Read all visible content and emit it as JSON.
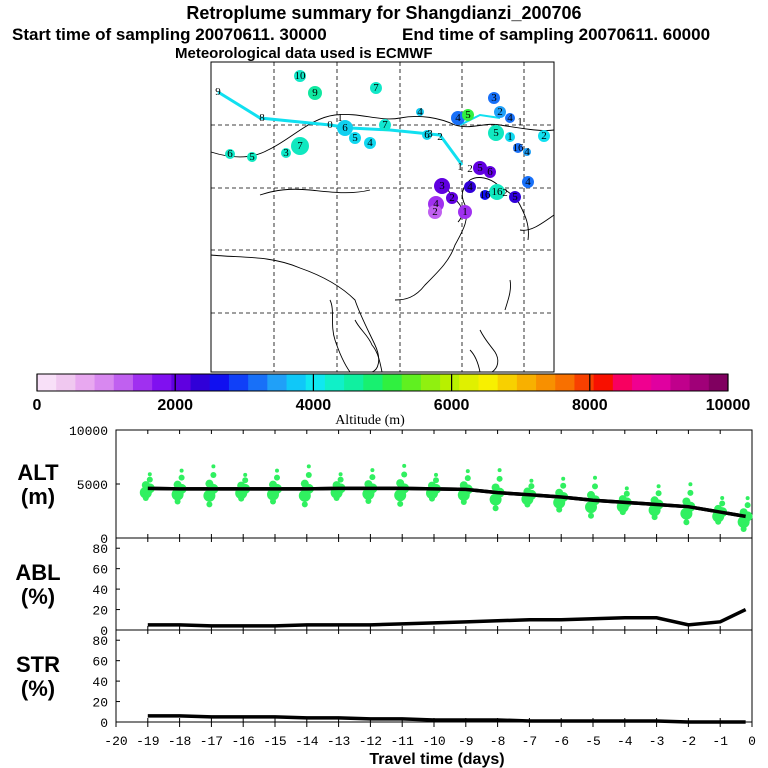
{
  "header": {
    "title": "Retroplume summary for Shangdianzi_200706",
    "start_sampling": "Start time of sampling 20070611. 30000",
    "end_sampling": "End time of sampling 20070611. 60000",
    "met_data": "Meteorological data used is ECMWF"
  },
  "colorbar": {
    "tick_labels": [
      "0",
      "2000",
      "4000",
      "6000",
      "8000",
      "10000"
    ],
    "label": "Altitude (m)",
    "range": [
      0,
      10000
    ],
    "colors": [
      "#f8e0f8",
      "#f0c8f0",
      "#e8a8f0",
      "#d888f0",
      "#c060f0",
      "#a030f0",
      "#8010f0",
      "#6000e0",
      "#3000d8",
      "#1010f0",
      "#1040f8",
      "#1870f8",
      "#20a0f8",
      "#10c8f8",
      "#10e8f0",
      "#10f0c8",
      "#10f0a0",
      "#18f070",
      "#30f040",
      "#60f020",
      "#90f010",
      "#b8f000",
      "#e0f000",
      "#f8f000",
      "#f8d000",
      "#f8b000",
      "#f89000",
      "#f87000",
      "#f84000",
      "#f81000",
      "#f80060",
      "#f00090",
      "#e000a0",
      "#c0008c",
      "#a00078",
      "#800060"
    ]
  },
  "map": {
    "description_labels": [
      "10",
      "9",
      "7",
      "9",
      "8",
      "7",
      "5",
      "6",
      "3",
      "6",
      "5",
      "4",
      "7",
      "4",
      "6",
      "4",
      "5",
      "3",
      "2",
      "4",
      "5",
      "1",
      "16",
      "4",
      "2",
      "4",
      "5",
      "6",
      "3",
      "2",
      "4",
      "16",
      "16",
      "5",
      "4",
      "2",
      "1",
      "0",
      "1",
      "3",
      "2",
      "1",
      "2",
      "1",
      "2"
    ]
  },
  "panels": [
    {
      "id": "alt",
      "label_line1": "ALT",
      "label_line2": "(m)",
      "y_ticks": [
        "10000",
        "5000",
        "0"
      ],
      "ylim": [
        0,
        10000
      ]
    },
    {
      "id": "abl",
      "label_line1": "ABL",
      "label_line2": "(%)",
      "y_ticks": [
        "80",
        "60",
        "40",
        "20",
        "0"
      ],
      "ylim": [
        0,
        90
      ]
    },
    {
      "id": "str",
      "label_line1": "STR",
      "label_line2": "(%)",
      "y_ticks": [
        "80",
        "60",
        "40",
        "20",
        "0"
      ],
      "ylim": [
        0,
        90
      ]
    }
  ],
  "x_axis": {
    "label": "Travel time (days)",
    "ticks": [
      "-20",
      "-19",
      "-18",
      "-17",
      "-16",
      "-15",
      "-14",
      "-13",
      "-12",
      "-11",
      "-10",
      "-9",
      "-8",
      "-7",
      "-6",
      "-5",
      "-4",
      "-3",
      "-2",
      "-1",
      "0"
    ],
    "xlim": [
      -20,
      0
    ]
  },
  "chart_data": {
    "type": "line",
    "x": [
      -19,
      -18,
      -17,
      -16,
      -15,
      -14,
      -13,
      -12,
      -11,
      -10,
      -9,
      -8,
      -7,
      -6,
      -5,
      -4,
      -3,
      -2,
      -1,
      -0.2
    ],
    "series": [
      {
        "name": "ALT mean (m)",
        "values": [
          4600,
          4550,
          4550,
          4550,
          4550,
          4550,
          4600,
          4600,
          4600,
          4550,
          4500,
          4200,
          4000,
          3800,
          3500,
          3300,
          3100,
          2900,
          2400,
          2000
        ]
      },
      {
        "name": "ABL (%)",
        "values": [
          5,
          5,
          4,
          4,
          4,
          5,
          5,
          5,
          6,
          7,
          8,
          9,
          10,
          10,
          11,
          12,
          12,
          5,
          8,
          20
        ]
      },
      {
        "name": "STR (%)",
        "values": [
          6,
          6,
          5,
          5,
          5,
          4,
          4,
          3,
          3,
          2,
          2,
          2,
          1,
          1,
          1,
          1,
          1,
          0,
          0,
          0
        ]
      }
    ]
  }
}
